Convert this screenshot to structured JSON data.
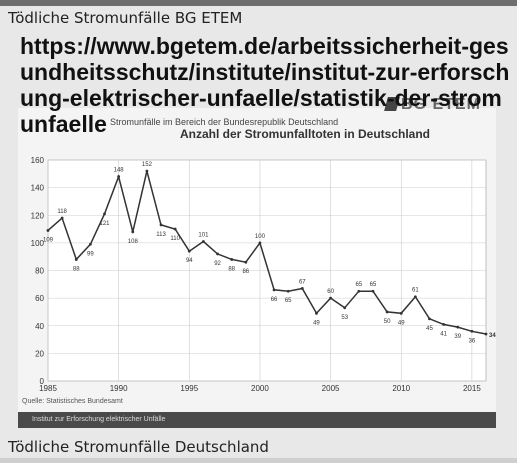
{
  "caption_top": "Tödliche Stromunfälle BG ETEM",
  "url_overlay": "https://www.bgetem.de/arbeitssicherheit-gesundheitsschutz/institute/institut-zur-erforschung-elektrischer-unfaelle/statistik-der-stromunfaelle",
  "logo_text": "BG ETEM",
  "chart_subtitle": "Stromunfälle im Bereich der Bundesrepublik Deutschland",
  "source": "Quelle:  Statistisches Bundesamt",
  "footer_text": "Institut  zur  Erforschung  elektrischer  Unfälle",
  "caption_bottom": "Tödliche Stromunfälle Deutschland",
  "colors": {
    "line": "#333333",
    "grid": "#cccccc",
    "footer": "#4a4a4a"
  },
  "chart_data": {
    "type": "line",
    "title": "Anzahl der Stromunfalltoten in Deutschland",
    "xlabel": "",
    "ylabel": "",
    "xlim": [
      1985,
      2016
    ],
    "ylim": [
      0,
      160
    ],
    "xticks": [
      1985,
      1990,
      1995,
      2000,
      2005,
      2010,
      2015
    ],
    "yticks": [
      0,
      20,
      40,
      60,
      80,
      100,
      120,
      140,
      160
    ],
    "grid": true,
    "series": [
      {
        "x": [
          1985,
          1986,
          1987,
          1988,
          1989,
          1990,
          1991,
          1992,
          1993,
          1994,
          1995,
          1996,
          1997,
          1998,
          1999,
          2000,
          2001,
          2002,
          2003,
          2004,
          2005,
          2006,
          2007,
          2008,
          2009,
          2010,
          2011,
          2012,
          2013,
          2014,
          2015,
          2016
        ],
        "values": [
          109,
          118,
          88,
          99,
          121,
          148,
          108,
          152,
          113,
          110,
          94,
          101,
          92,
          88,
          86,
          100,
          66,
          65,
          67,
          49,
          60,
          53,
          65,
          65,
          50,
          49,
          61,
          45,
          41,
          39,
          36,
          34
        ],
        "labels": [
          "109",
          "118",
          "88",
          "99",
          "121",
          "148",
          "108",
          "152",
          "113",
          "110",
          "94",
          "101",
          "92",
          "88",
          "86",
          "100",
          "66",
          "65",
          "67",
          "49",
          "60",
          "53",
          "65",
          "65",
          "50",
          "49",
          "61",
          "45",
          "41",
          "39",
          "36",
          "34"
        ]
      }
    ]
  }
}
